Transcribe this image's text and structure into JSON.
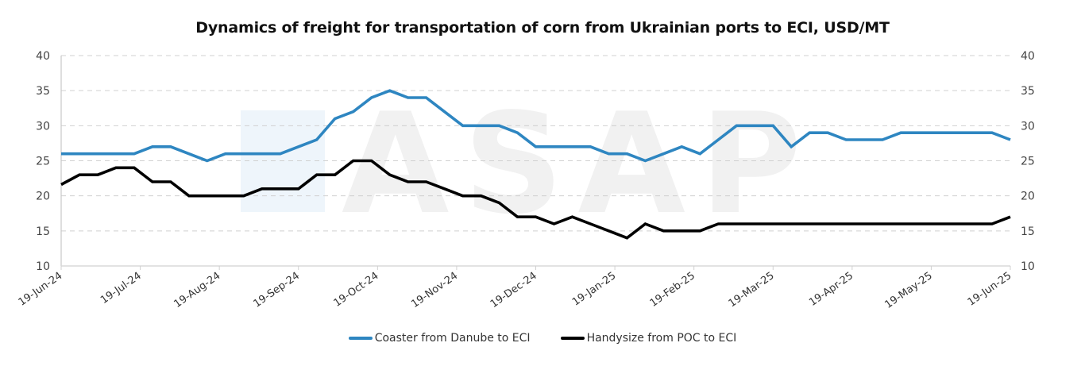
{
  "chart_data": {
    "type": "line",
    "title": "Dynamics of freight for transportation of corn from Ukrainian ports to ECI, USD/MT",
    "xlabel": "",
    "ylabel": "",
    "ylim": [
      10,
      40
    ],
    "yticks": [
      10,
      15,
      20,
      25,
      30,
      35,
      40
    ],
    "secondary_yticks": [
      10,
      15,
      20,
      25,
      30,
      35,
      40
    ],
    "grid": "horizontal dashed",
    "legend_position": "bottom",
    "x_tick_labels": [
      "19-Jun-24",
      "19-Jul-24",
      "19-Aug-24",
      "19-Sep-24",
      "19-Oct-24",
      "19-Nov-24",
      "19-Dec-24",
      "19-Jan-25",
      "19-Feb-25",
      "19-Mar-25",
      "19-Apr-25",
      "19-May-25",
      "19-Jun-25"
    ],
    "x_frequency": "weekly, 53 points from 19-Jun-24 to 19-Jun-25",
    "series": [
      {
        "name": "Coaster from Danube to ECI",
        "color": "#2E86C1",
        "values": [
          26,
          26,
          26,
          26,
          26,
          27,
          27,
          26,
          25,
          26,
          26,
          26,
          26,
          27,
          28,
          31,
          32,
          34,
          35,
          34,
          34,
          32,
          30,
          30,
          30,
          29,
          27,
          27,
          27,
          27,
          26,
          26,
          25,
          26,
          27,
          26,
          28,
          30,
          30,
          30,
          27,
          29,
          29,
          28,
          28,
          28,
          29,
          29,
          29,
          29,
          29,
          29,
          28
        ]
      },
      {
        "name": "Handysize from POC to ECI",
        "color": "#000000",
        "values": [
          21.6,
          23,
          23,
          24,
          24,
          22,
          22,
          20,
          20,
          20,
          20,
          21,
          21,
          21,
          23,
          23,
          25,
          25,
          23,
          22,
          22,
          21,
          20,
          20,
          19,
          17,
          17,
          16,
          17,
          16,
          15,
          14,
          16,
          15,
          15,
          15,
          16,
          16,
          16,
          16,
          16,
          16,
          16,
          16,
          16,
          16,
          16,
          16,
          16,
          16,
          16,
          16,
          17
        ]
      }
    ]
  },
  "legend": {
    "items": [
      {
        "label": "Coaster from Danube to ECI",
        "color": "#2E86C1"
      },
      {
        "label": "Handysize from POC to ECI",
        "color": "#000000"
      }
    ]
  },
  "watermark": "ASAP"
}
